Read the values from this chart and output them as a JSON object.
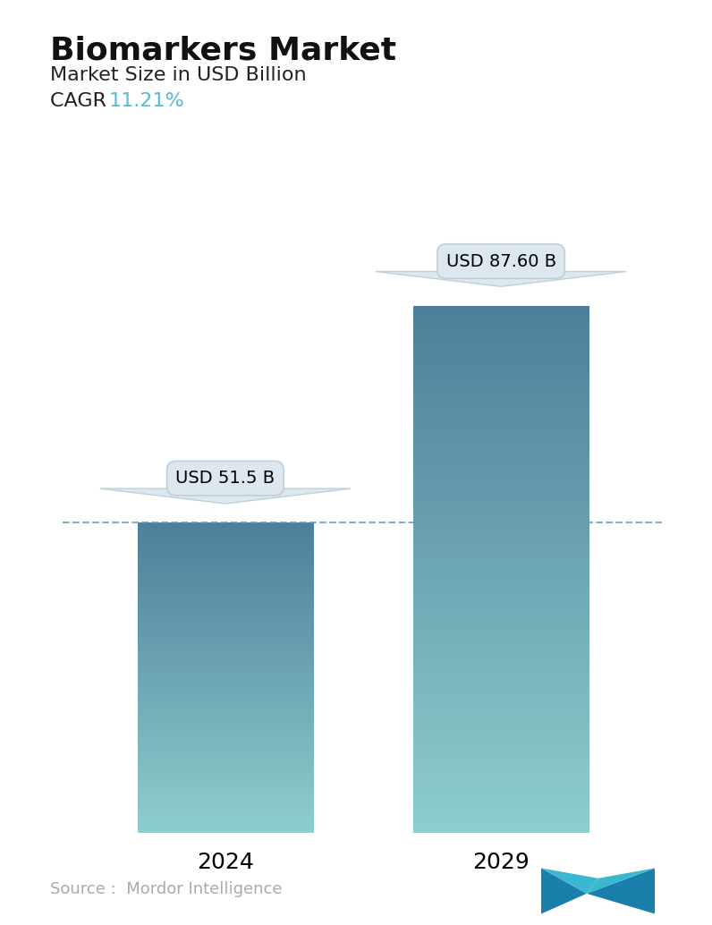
{
  "title": "Biomarkers Market",
  "subtitle": "Market Size in USD Billion",
  "cagr_label": "CAGR  ",
  "cagr_value": "11.21%",
  "cagr_color": "#5bb8d4",
  "categories": [
    "2024",
    "2029"
  ],
  "values": [
    51.5,
    87.6
  ],
  "bar_labels": [
    "USD 51.5 B",
    "USD 87.60 B"
  ],
  "bar_top_color": [
    "#4d7f9a",
    "#4d7f9a"
  ],
  "bar_bottom_color": [
    "#8ecece",
    "#8ecece"
  ],
  "dashed_line_color": "#6a9ab5",
  "source_text": "Source :  Mordor Intelligence",
  "source_color": "#aaaaaa",
  "background_color": "#ffffff",
  "title_fontsize": 26,
  "subtitle_fontsize": 16,
  "cagr_fontsize": 16,
  "bar_label_fontsize": 14,
  "xlabel_fontsize": 18,
  "source_fontsize": 13,
  "ylim": [
    0,
    100
  ],
  "bar_width": 0.28,
  "x_positions": [
    0.28,
    0.72
  ],
  "callout_facecolor": "#dde8ee",
  "callout_edgecolor": "#c0d0da",
  "logo_colors": [
    "#1a7faa",
    "#3ab5d0",
    "#1a7faa"
  ]
}
